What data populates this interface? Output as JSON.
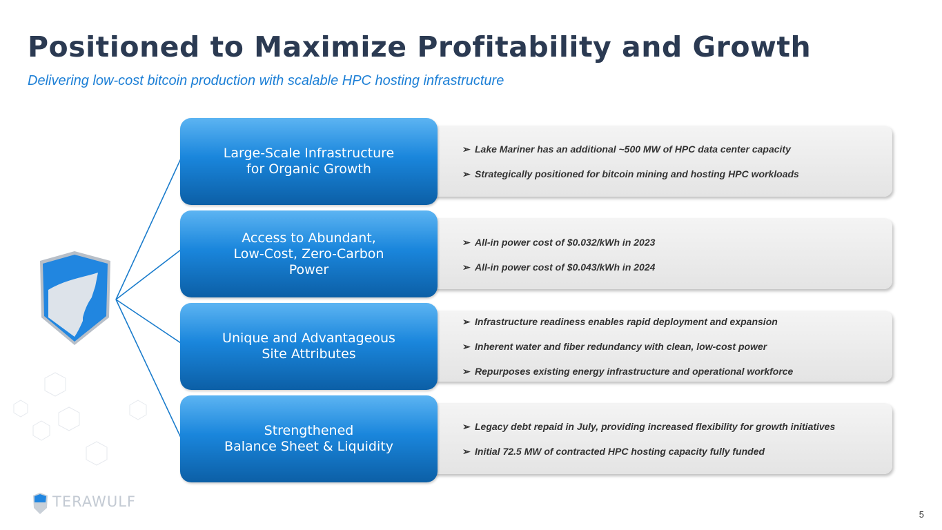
{
  "title": "Positioned to Maximize Profitability and Growth",
  "subtitle": "Delivering low-cost bitcoin production with scalable HPC hosting infrastructure",
  "pillars": [
    {
      "label": "Large-Scale Infrastructure\nfor Organic Growth",
      "bullets": [
        "Lake Mariner has an additional ~500 MW of HPC data center capacity",
        "Strategically positioned for bitcoin mining and hosting HPC workloads"
      ]
    },
    {
      "label": "Access to Abundant,\nLow-Cost, Zero-Carbon\nPower",
      "bullets": [
        "All-in power cost of $0.032/kWh in 2023",
        "All-in power cost of $0.043/kWh in 2024"
      ]
    },
    {
      "label": "Unique and Advantageous\nSite Attributes",
      "bullets": [
        "Infrastructure readiness enables rapid deployment and expansion",
        "Inherent water and fiber redundancy with clean, low-cost power",
        "Repurposes existing energy infrastructure and operational workforce"
      ]
    },
    {
      "label": "Strengthened\nBalance Sheet & Liquidity",
      "bullets": [
        "Legacy debt repaid in July, providing increased flexibility for growth initiatives",
        "Initial 72.5 MW of contracted HPC hosting capacity fully funded"
      ]
    }
  ],
  "bullet_glyph": "➢",
  "logo_text": "TERAWULF",
  "page_number": "5",
  "colors": {
    "title": "#2b3a52",
    "accent": "#1c7fd6"
  }
}
